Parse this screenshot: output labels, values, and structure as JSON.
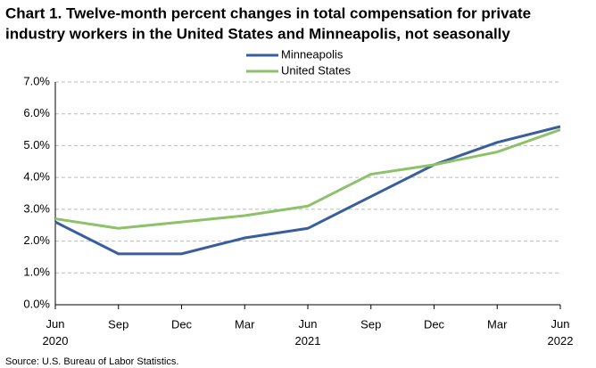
{
  "chart_data": {
    "type": "line",
    "title": [
      "Chart 1. Twelve-month percent changes in total compensation for private",
      "industry workers in the United States and Minneapolis, not seasonally"
    ],
    "categories": [
      "Jun 2020",
      "Sep",
      "Dec",
      "Mar",
      "Jun 2021",
      "Sep",
      "Dec",
      "Mar",
      "Jun 2022"
    ],
    "series": [
      {
        "name": "Minneapolis",
        "color": "#3a5d9c",
        "values": [
          2.6,
          1.6,
          1.6,
          2.1,
          2.4,
          3.4,
          4.4,
          5.1,
          5.6
        ]
      },
      {
        "name": "United States",
        "color": "#8dc26a",
        "values": [
          2.7,
          2.4,
          2.6,
          2.8,
          3.1,
          4.1,
          4.4,
          4.8,
          5.5
        ]
      }
    ],
    "ylim": [
      0,
      7
    ],
    "yticks": [
      {
        "value": 0,
        "label": "0.0%"
      },
      {
        "value": 1,
        "label": "1.0%"
      },
      {
        "value": 2,
        "label": "2.0%"
      },
      {
        "value": 3,
        "label": "3.0%"
      },
      {
        "value": 4,
        "label": "4.0%"
      },
      {
        "value": 5,
        "label": "5.0%"
      },
      {
        "value": 6,
        "label": "6.0%"
      },
      {
        "value": 7,
        "label": "7.0%"
      }
    ],
    "grid": true,
    "source": "Source: U.S. Bureau of Labor Statistics."
  }
}
